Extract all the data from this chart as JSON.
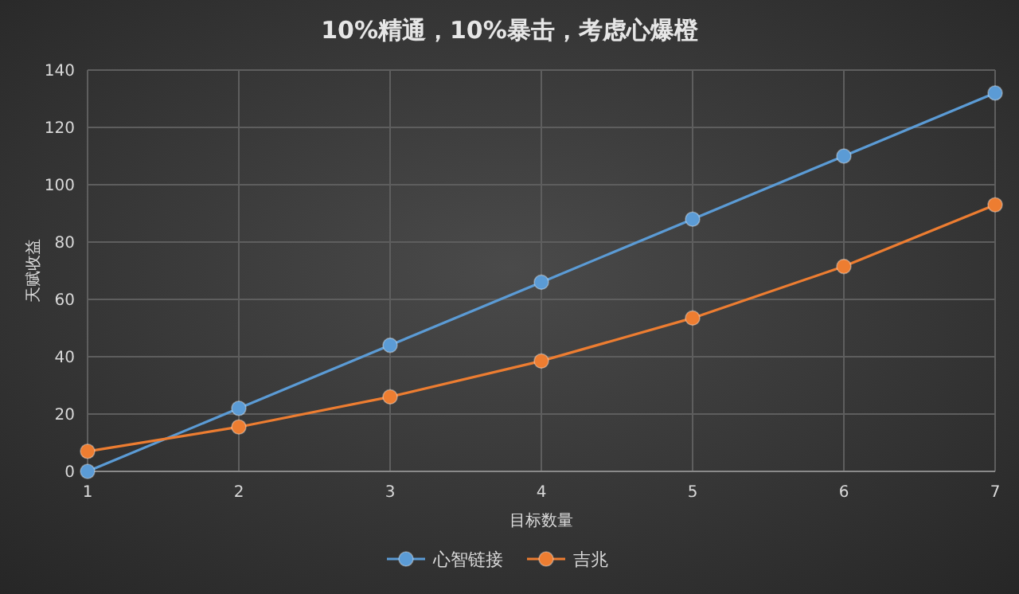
{
  "chart_data": {
    "type": "line",
    "title": "10%精通，10%暴击，考虑心爆橙",
    "xlabel": "目标数量",
    "ylabel": "天赋收益",
    "x": [
      1,
      2,
      3,
      4,
      5,
      6,
      7
    ],
    "series": [
      {
        "name": "心智链接",
        "color": "#5b9bd5",
        "values": [
          0,
          22,
          44,
          66,
          88,
          110,
          132
        ]
      },
      {
        "name": "吉兆",
        "color": "#ed7d31",
        "values": [
          7,
          15.5,
          26,
          38.5,
          53.5,
          71.5,
          93
        ]
      }
    ],
    "xlim": [
      1,
      7
    ],
    "xticks": [
      1,
      2,
      3,
      4,
      5,
      6,
      7
    ],
    "ylim": [
      0,
      140
    ],
    "yticks": [
      0,
      20,
      40,
      60,
      80,
      100,
      120,
      140
    ],
    "grid": true,
    "legend": "bottom",
    "marker": "circle"
  }
}
